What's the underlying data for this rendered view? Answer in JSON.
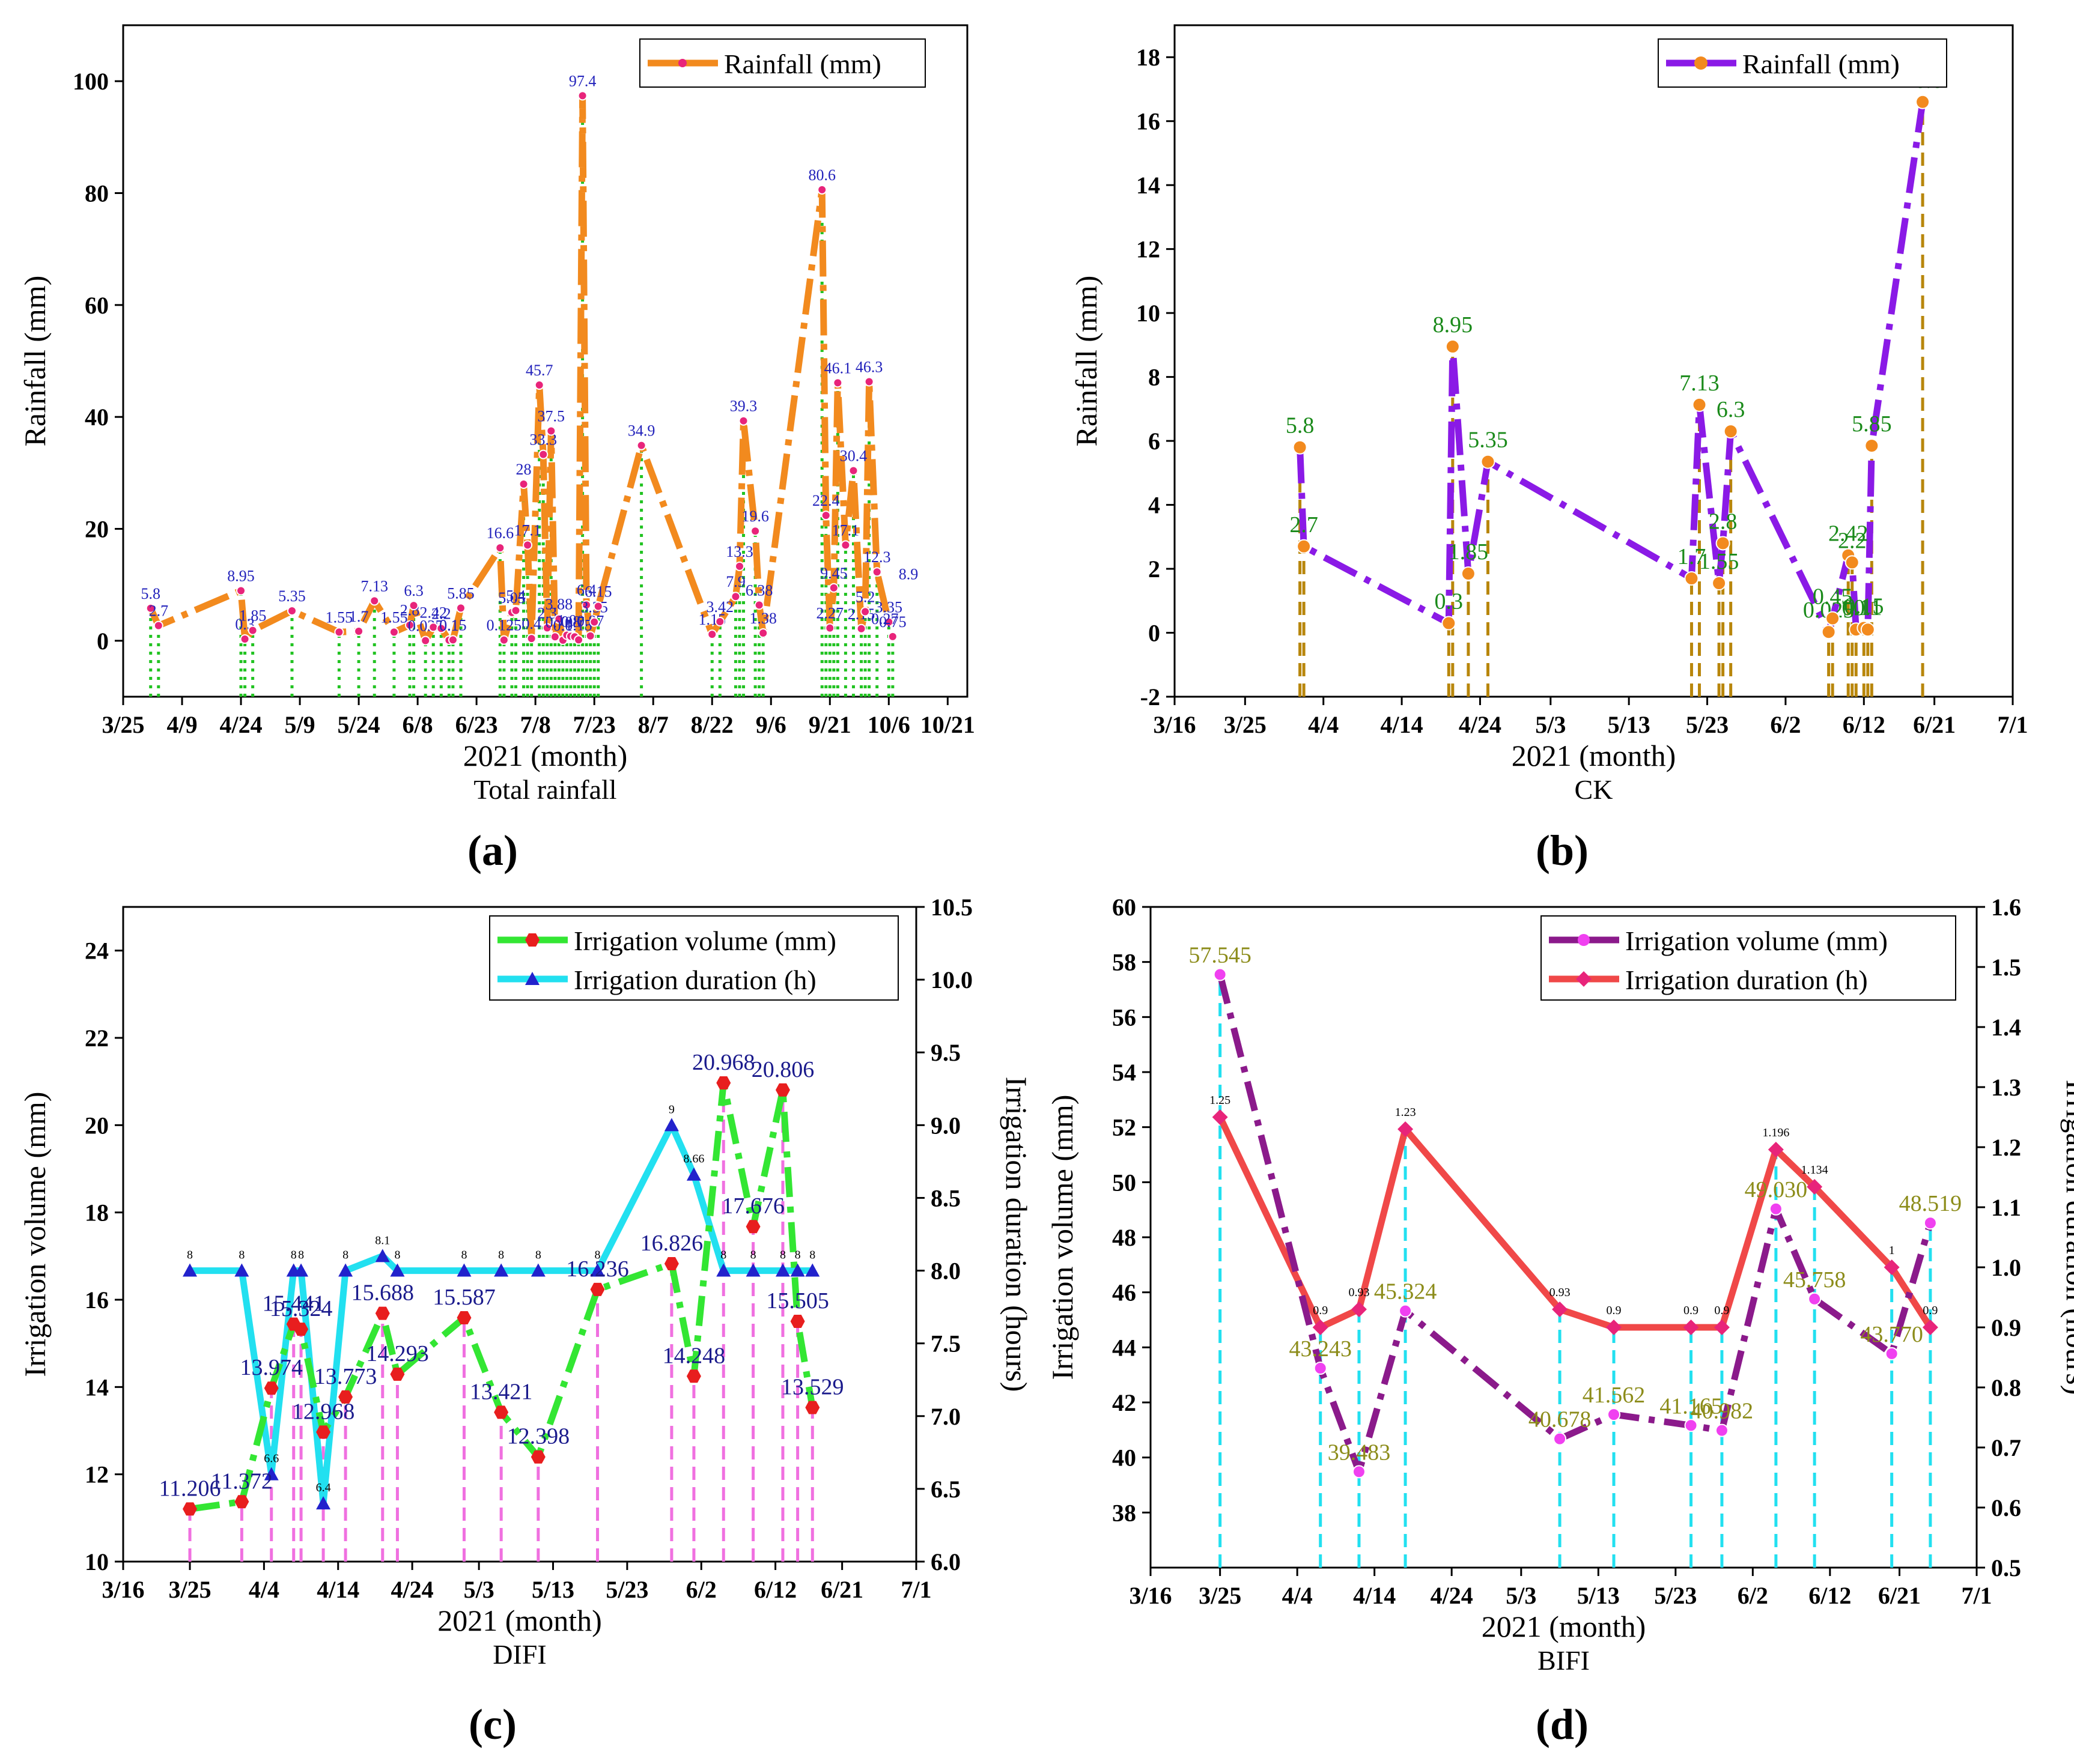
{
  "figure": {
    "panel_a_label": "(a)",
    "panel_b_label": "(b)",
    "panel_c_label": "(c)",
    "panel_d_label": "(d)"
  },
  "chart_data": [
    {
      "panel": "a",
      "type": "line",
      "title": "Total rainfall",
      "xlabel": "2021 (month)",
      "ylabel": "Rainfall (mm)",
      "x_ticks": [
        "3/25",
        "4/9",
        "4/24",
        "5/9",
        "5/24",
        "6/8",
        "6/23",
        "7/8",
        "7/23",
        "8/7",
        "8/22",
        "9/6",
        "9/21",
        "10/6",
        "10/21"
      ],
      "x_tick_days": [
        0,
        15,
        30,
        45,
        60,
        75,
        90,
        105,
        120,
        135,
        150,
        165,
        180,
        195,
        210
      ],
      "xlim": [
        0,
        215
      ],
      "ylim": [
        -10,
        110
      ],
      "y_ticks": [
        0,
        20,
        40,
        60,
        80,
        100
      ],
      "colors": {
        "line": "#F28A1E",
        "marker": "#E8247A",
        "drop": "#22C322",
        "label": "#2222BB"
      },
      "series": [
        {
          "name": "Rainfall (mm)",
          "x": [
            7,
            9,
            30,
            31,
            33,
            43,
            55,
            60,
            64,
            69,
            73,
            74,
            77,
            79,
            81,
            83,
            84,
            86,
            96,
            97,
            99,
            100,
            102,
            103,
            104,
            106,
            107,
            108,
            109,
            110,
            111,
            112,
            113,
            114,
            115,
            116,
            117,
            118,
            119,
            120,
            121,
            132,
            150,
            152,
            156,
            157,
            158,
            161,
            162,
            163,
            178,
            179,
            180,
            181,
            182,
            184,
            186,
            188,
            189,
            190,
            192,
            195,
            196
          ],
          "y": [
            5.8,
            2.7,
            8.95,
            0.3,
            1.85,
            5.35,
            1.55,
            1.7,
            7.13,
            1.55,
            2.8,
            6.3,
            0.025,
            2.42,
            2.2,
            0.1,
            0.15,
            5.85,
            16.6,
            0.125,
            5.05,
            5.4,
            28,
            17.1,
            0.4,
            45.7,
            33.3,
            2.3,
            37.5,
            0.7,
            3.88,
            0.1,
            1.0,
            0.8,
            0.7,
            0.15,
            97.4,
            6.4,
            0.87,
            3.35,
            6.15,
            34.9,
            1.15,
            3.42,
            7.9,
            13.3,
            39.3,
            19.6,
            6.38,
            1.38,
            80.6,
            22.4,
            2.27,
            9.45,
            46.1,
            17.1,
            30.4,
            2.15,
            5.2,
            46.3,
            12.3,
            3.35,
            0.75
          ],
          "labels": [
            "5.8",
            "2.7",
            "8.95",
            "0.3",
            "1.85",
            "5.35",
            "1.55",
            "1.7",
            "7.13",
            "1.55",
            "2.8",
            "6.3",
            "0.025",
            "2.42",
            "2.2",
            "0.1",
            "0.15",
            "5.85",
            "16.6",
            "0.125",
            "5.05",
            "5.4",
            "28",
            "17.1",
            "0.4",
            "45.7",
            "33.3",
            "2.3",
            "37.5",
            "0.7",
            "3.88",
            "0.1",
            "1.0",
            "0.8",
            "0.7",
            "0.15",
            "97.4",
            "6.4",
            "0.87",
            "3.35",
            "6.15",
            "34.9",
            "1.15",
            "3.42",
            "7.9",
            "13.3",
            "39.3",
            "19.6",
            "6.38",
            "1.38",
            "80.6",
            "22.4",
            "2.27",
            "9.45",
            "46.1",
            "17.1",
            "30.4",
            "2.15",
            "5.2",
            "46.3",
            "12.3",
            "3.35",
            "0.75"
          ]
        }
      ],
      "extra_labels": [
        "8.9",
        "0.27"
      ],
      "legend": "top-right"
    },
    {
      "panel": "b",
      "type": "line",
      "title": "CK",
      "xlabel": "2021 (month)",
      "ylabel": "Rainfall (mm)",
      "x_ticks": [
        "3/16",
        "3/25",
        "4/4",
        "4/14",
        "4/24",
        "5/3",
        "5/13",
        "5/23",
        "6/2",
        "6/12",
        "6/21",
        "7/1"
      ],
      "x_tick_days": [
        0,
        9,
        19,
        29,
        39,
        48,
        58,
        68,
        78,
        88,
        97,
        107
      ],
      "xlim": [
        0,
        107
      ],
      "ylim": [
        -2,
        19
      ],
      "y_ticks": [
        -2,
        0,
        2,
        4,
        6,
        8,
        10,
        12,
        14,
        16,
        18
      ],
      "colors": {
        "line": "#8A1AE6",
        "marker": "#F28A1E",
        "drop": "#B8860B",
        "label": "#1A8A1A"
      },
      "series": [
        {
          "name": "Rainfall (mm)",
          "x": [
            16,
            16.5,
            35,
            35.5,
            37.5,
            40,
            66,
            67,
            69.5,
            70,
            71,
            83.5,
            84,
            86,
            86.5,
            87,
            88,
            88.5,
            89,
            95.5
          ],
          "y": [
            5.8,
            2.7,
            0.3,
            8.95,
            1.85,
            5.35,
            1.7,
            7.13,
            1.55,
            2.8,
            6.3,
            0.025,
            0.45,
            2.42,
            2.2,
            0.1,
            0.15,
            0.1,
            5.85,
            16.6
          ],
          "labels": [
            "5.8",
            "2.7",
            "0.3",
            "8.95",
            "1.85",
            "5.35",
            "1.7",
            "7.13",
            "1.55",
            "2.8",
            "6.3",
            "0.025",
            "0.45",
            "2.42",
            "2.2",
            "0.1",
            "0.15",
            "0.1",
            "5.85",
            "16.6"
          ]
        }
      ],
      "legend": "top-right"
    },
    {
      "panel": "c",
      "type": "line",
      "title": "DIFI",
      "xlabel": "2021 (month)",
      "ylabel": "Irrigation volume (mm)",
      "y2label": "Irrigation duration (hours)",
      "x_ticks": [
        "3/16",
        "3/25",
        "4/4",
        "4/14",
        "4/24",
        "5/3",
        "5/13",
        "5/23",
        "6/2",
        "6/12",
        "6/21",
        "7/1"
      ],
      "x_tick_days": [
        0,
        9,
        19,
        29,
        39,
        48,
        58,
        68,
        78,
        88,
        97,
        107
      ],
      "xlim": [
        0,
        107
      ],
      "ylim": [
        10,
        25
      ],
      "y_ticks": [
        10,
        12,
        14,
        16,
        18,
        20,
        22,
        24
      ],
      "y2lim": [
        6.0,
        10.5
      ],
      "y2_ticks": [
        "6.0",
        "6.5",
        "7.0",
        "7.5",
        "8.0",
        "8.5",
        "9.0",
        "9.5",
        "10.0",
        "10.5"
      ],
      "colors": {
        "volume_line": "#33E633",
        "volume_marker": "#E81E1E",
        "duration_line": "#22E0F0",
        "duration_marker": "#2222CC",
        "drop": "#F070E0",
        "label": "#1A1A8C"
      },
      "series": [
        {
          "name": "Irrigation volume (mm)",
          "x": [
            9,
            16,
            20,
            23,
            24,
            27,
            30,
            35,
            37,
            46,
            51,
            56,
            64,
            74,
            77,
            81,
            85,
            89,
            91,
            93
          ],
          "y": [
            11.206,
            11.372,
            13.974,
            15.441,
            15.324,
            12.968,
            13.773,
            15.688,
            14.293,
            15.587,
            13.421,
            12.398,
            16.236,
            16.826,
            14.248,
            20.968,
            17.676,
            20.806,
            15.505,
            13.529
          ],
          "labels": [
            "11.206",
            "11.372",
            "13.974",
            "15.441",
            "15.324",
            "12.968",
            "13.773",
            "15.688",
            "14.293",
            "15.587",
            "13.421",
            "12.398",
            "16.236",
            "16.826",
            "14.248",
            "20.968",
            "17.676",
            "20.806",
            "15.505",
            "13.529"
          ]
        },
        {
          "name": "Irrigation duration (h)",
          "x": [
            9,
            16,
            20,
            23,
            24,
            27,
            30,
            35,
            37,
            46,
            51,
            56,
            64,
            74,
            77,
            81,
            85,
            89,
            91,
            93
          ],
          "y": [
            8,
            8,
            6.6,
            8,
            8,
            6.4,
            8,
            8.1,
            8,
            8,
            8,
            8,
            8,
            9,
            8.66,
            8,
            8,
            8,
            8,
            8
          ],
          "labels": [
            "8",
            "8",
            "6.6",
            "8",
            "8",
            "6.4",
            "8",
            "8.1",
            "8",
            "8",
            "8",
            "8",
            "8",
            "9",
            "8.66",
            "8",
            "8",
            "8",
            "8",
            "8"
          ]
        }
      ],
      "legend": "top-right"
    },
    {
      "panel": "d",
      "type": "line",
      "title": "BIFI",
      "xlabel": "2021 (month)",
      "ylabel": "Irrigation volume (mm)",
      "y2label": "Irrigation duration (hours)",
      "x_ticks": [
        "3/16",
        "3/25",
        "4/4",
        "4/14",
        "4/24",
        "5/3",
        "5/13",
        "5/23",
        "6/2",
        "6/12",
        "6/21",
        "7/1"
      ],
      "x_tick_days": [
        0,
        9,
        19,
        29,
        39,
        48,
        58,
        68,
        78,
        88,
        97,
        107
      ],
      "xlim": [
        0,
        107
      ],
      "ylim": [
        36,
        60
      ],
      "y_ticks": [
        38,
        40,
        42,
        44,
        46,
        48,
        50,
        52,
        54,
        56,
        58,
        60
      ],
      "y2lim": [
        0.5,
        1.6
      ],
      "y2_ticks": [
        "0.5",
        "0.6",
        "0.7",
        "0.8",
        "0.9",
        "1.0",
        "1.1",
        "1.2",
        "1.3",
        "1.4",
        "1.5",
        "1.6"
      ],
      "colors": {
        "volume_line": "#8B1A8B",
        "volume_marker": "#F040F0",
        "duration_line": "#F04848",
        "duration_marker": "#E8247A",
        "drop": "#22E0F0",
        "label": "#8C8C1A"
      },
      "series": [
        {
          "name": "Irrigation volume (mm)",
          "x": [
            9,
            22,
            27,
            33,
            53,
            60,
            70,
            74,
            81,
            86,
            96,
            101
          ],
          "y": [
            57.545,
            43.243,
            39.483,
            45.324,
            40.678,
            41.562,
            41.165,
            40.982,
            49.03,
            45.758,
            43.77,
            48.519
          ],
          "labels": [
            "57.545",
            "43.243",
            "39.483",
            "45.324",
            "40.678",
            "41.562",
            "41.165",
            "40.982",
            "49.030",
            "45.758",
            "43.770",
            "48.519"
          ]
        },
        {
          "name": "Irrigation duration (h)",
          "x": [
            9,
            22,
            27,
            33,
            53,
            60,
            70,
            74,
            81,
            86,
            96,
            101
          ],
          "y": [
            1.25,
            0.9,
            0.93,
            1.23,
            0.93,
            0.9,
            0.9,
            0.9,
            1.196,
            1.134,
            1,
            0.9
          ],
          "labels": [
            "1.25",
            "0.9",
            "0.93",
            "1.23",
            "0.93",
            "0.9",
            "0.9",
            "0.9",
            "1.196",
            "1.134",
            "1",
            "0.9"
          ]
        }
      ],
      "legend": "top-right"
    }
  ]
}
